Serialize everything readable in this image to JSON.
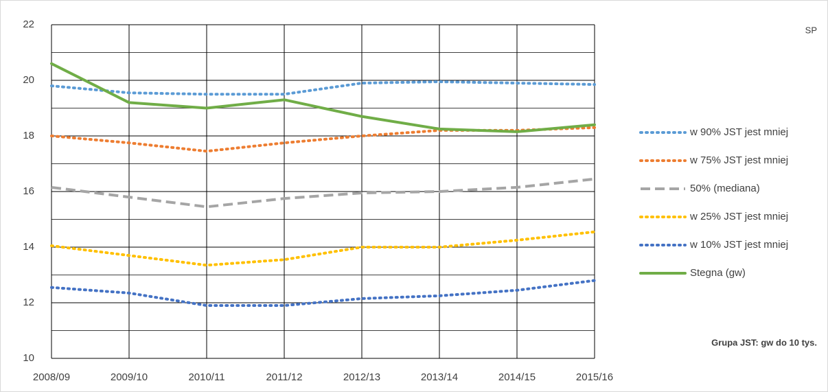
{
  "chart_data": {
    "type": "line",
    "note_top": "SP",
    "note_bottom": "Grupa JST: gw do 10 tys.",
    "categories": [
      "2008/09",
      "2009/10",
      "2010/11",
      "2011/12",
      "2012/13",
      "2013/14",
      "2014/15",
      "2015/16"
    ],
    "ylim": [
      10,
      22
    ],
    "yticks": [
      10,
      12,
      14,
      16,
      18,
      20,
      22
    ],
    "minor_yticks": [
      11,
      13,
      15,
      17,
      19,
      21
    ],
    "grid": true,
    "legend": "right",
    "series": [
      {
        "name": "w 90% JST jest mniej",
        "color": "#5b9bd5",
        "style": "dotted",
        "values": [
          19.8,
          19.55,
          19.5,
          19.5,
          19.9,
          19.95,
          19.9,
          19.85
        ]
      },
      {
        "name": "w 75% JST jest mniej",
        "color": "#ed7d31",
        "style": "dotted",
        "values": [
          18.0,
          17.75,
          17.45,
          17.75,
          18.0,
          18.2,
          18.2,
          18.3
        ]
      },
      {
        "name": "50% (mediana)",
        "color": "#a5a5a5",
        "style": "dashed",
        "values": [
          16.15,
          15.8,
          15.45,
          15.75,
          15.95,
          16.0,
          16.15,
          16.45
        ]
      },
      {
        "name": "w 25% JST jest mniej",
        "color": "#ffc000",
        "style": "dotted",
        "values": [
          14.05,
          13.7,
          13.35,
          13.55,
          14.0,
          14.0,
          14.25,
          14.55
        ]
      },
      {
        "name": "w 10% JST jest mniej",
        "color": "#4472c4",
        "style": "dotted",
        "values": [
          12.55,
          12.35,
          11.9,
          11.9,
          12.15,
          12.25,
          12.45,
          12.8
        ]
      },
      {
        "name": "Stegna (gw)",
        "color": "#70ad47",
        "style": "solid",
        "values": [
          20.6,
          19.2,
          19.0,
          19.3,
          18.7,
          18.25,
          18.15,
          18.4
        ]
      }
    ]
  }
}
